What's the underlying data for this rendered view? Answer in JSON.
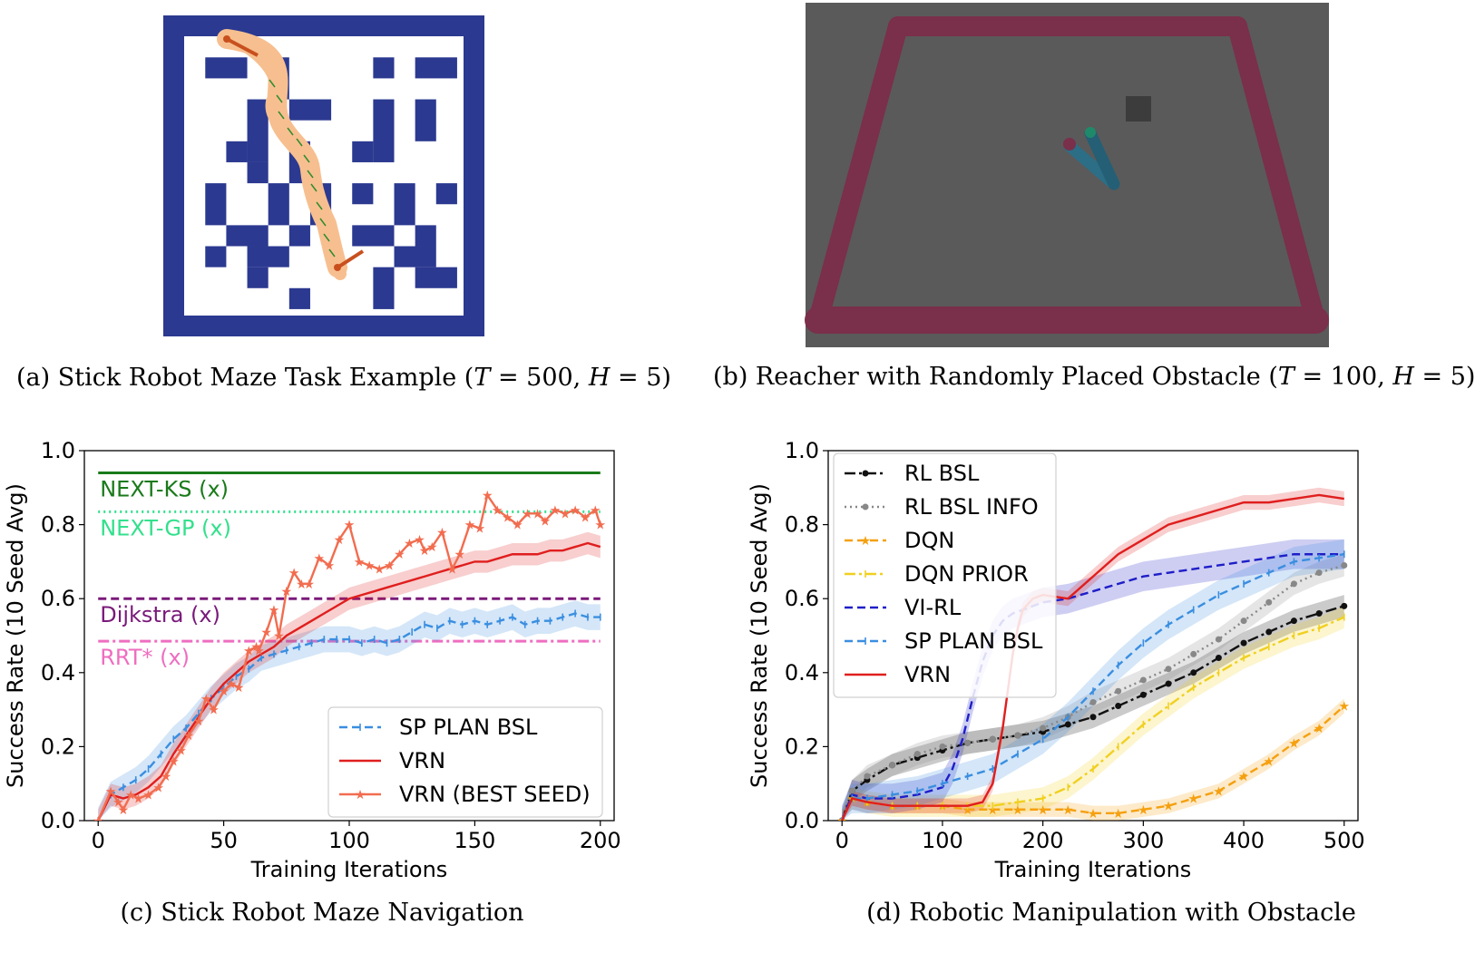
{
  "captions": {
    "a": {
      "prefix": "(a) Stick Robot Maze Task Example (",
      "T": "T",
      "T_val": " = 500, ",
      "H": "H",
      "H_val": " = 5)"
    },
    "b": {
      "prefix": "(b) Reacher with Randomly Placed Obstacle (",
      "T": "T",
      "T_val": " = 100, ",
      "H": "H",
      "H_val": " = 5)"
    },
    "c": "(c) Stick Robot Maze Navigation",
    "d": "(d) Robotic Manipulation with Obstacle"
  },
  "colors": {
    "maze_wall": "#2b3990",
    "maze_path": "#f7bf8f",
    "robot": "#c8501e",
    "floor": "#5a5a5a",
    "rail": "#7a2f4a",
    "green": "#1a7a1a",
    "springgreen": "#33e08c",
    "purple": "#7a1a7a",
    "pink": "#ee6ec0",
    "blue": "#3a8ee0",
    "red": "#e01e1e",
    "salmon": "#f26c4f",
    "black": "#111111",
    "gray": "#888888",
    "orange": "#f5a00f",
    "gold": "#f0d020",
    "navy": "#1e1ec8"
  },
  "chart_data": [
    {
      "id": "c",
      "type": "line",
      "xlabel": "Training Iterations",
      "ylabel": "Success Rate (10 Seed Avg)",
      "xlim": [
        0,
        200
      ],
      "ylim": [
        0,
        1.0
      ],
      "xticks": [
        "0",
        "50",
        "100",
        "150",
        "200"
      ],
      "yticks": [
        "0.0",
        "0.2",
        "0.4",
        "0.6",
        "0.8",
        "1.0"
      ],
      "baselines": [
        {
          "label": "NEXT-KS (x)",
          "y": 0.94,
          "style": "solid",
          "color": "#1a7a1a"
        },
        {
          "label": "NEXT-GP (x)",
          "y": 0.835,
          "style": "dotted",
          "color": "#33e08c"
        },
        {
          "label": "Dijkstra (x)",
          "y": 0.6,
          "style": "dashed",
          "color": "#7a1a7a"
        },
        {
          "label": "RRT* (x)",
          "y": 0.485,
          "style": "dashdot",
          "color": "#ee6ec0"
        }
      ],
      "legend_position": "lower-right",
      "series": [
        {
          "name": "SP PLAN BSL",
          "style": "dashed-tick",
          "color": "#3a8ee0",
          "x": [
            0,
            5,
            10,
            15,
            20,
            25,
            30,
            35,
            40,
            45,
            50,
            55,
            60,
            65,
            70,
            75,
            80,
            85,
            90,
            95,
            100,
            105,
            110,
            115,
            120,
            125,
            130,
            135,
            140,
            145,
            150,
            155,
            160,
            165,
            170,
            175,
            180,
            185,
            190,
            195,
            200
          ],
          "y": [
            0.0,
            0.07,
            0.09,
            0.11,
            0.14,
            0.18,
            0.22,
            0.25,
            0.29,
            0.33,
            0.36,
            0.39,
            0.41,
            0.44,
            0.45,
            0.46,
            0.47,
            0.48,
            0.49,
            0.49,
            0.49,
            0.48,
            0.49,
            0.48,
            0.49,
            0.51,
            0.53,
            0.52,
            0.54,
            0.53,
            0.54,
            0.53,
            0.54,
            0.55,
            0.53,
            0.54,
            0.54,
            0.55,
            0.56,
            0.55,
            0.55
          ],
          "band": 0.035
        },
        {
          "name": "VRN",
          "style": "solid",
          "color": "#e01e1e",
          "x": [
            0,
            5,
            10,
            15,
            20,
            25,
            30,
            35,
            40,
            45,
            50,
            55,
            60,
            65,
            70,
            75,
            80,
            85,
            90,
            95,
            100,
            105,
            110,
            115,
            120,
            125,
            130,
            135,
            140,
            145,
            150,
            155,
            160,
            165,
            170,
            175,
            180,
            185,
            190,
            195,
            200
          ],
          "y": [
            0.0,
            0.07,
            0.06,
            0.07,
            0.09,
            0.12,
            0.18,
            0.23,
            0.28,
            0.33,
            0.37,
            0.4,
            0.43,
            0.45,
            0.47,
            0.5,
            0.52,
            0.54,
            0.56,
            0.58,
            0.6,
            0.61,
            0.62,
            0.63,
            0.64,
            0.65,
            0.66,
            0.67,
            0.68,
            0.69,
            0.7,
            0.7,
            0.71,
            0.72,
            0.72,
            0.72,
            0.73,
            0.73,
            0.74,
            0.75,
            0.74
          ],
          "band": 0.03
        },
        {
          "name": "VRN (BEST SEED)",
          "style": "solid-star",
          "color": "#f26c4f",
          "x": [
            0,
            5,
            8,
            10,
            13,
            16,
            20,
            24,
            27,
            30,
            33,
            36,
            40,
            43,
            46,
            50,
            53,
            56,
            60,
            63,
            64,
            67,
            70,
            72,
            75,
            78,
            81,
            84,
            88,
            92,
            96,
            100,
            104,
            108,
            112,
            116,
            120,
            124,
            128,
            130,
            133,
            137,
            141,
            144,
            148,
            152,
            155,
            159,
            163,
            167,
            171,
            175,
            178,
            182,
            186,
            190,
            194,
            198,
            200
          ],
          "y": [
            0.0,
            0.08,
            0.05,
            0.03,
            0.07,
            0.06,
            0.07,
            0.09,
            0.12,
            0.16,
            0.19,
            0.23,
            0.27,
            0.33,
            0.3,
            0.35,
            0.37,
            0.36,
            0.46,
            0.47,
            0.46,
            0.51,
            0.57,
            0.5,
            0.62,
            0.67,
            0.64,
            0.64,
            0.71,
            0.69,
            0.76,
            0.8,
            0.7,
            0.69,
            0.68,
            0.69,
            0.72,
            0.75,
            0.76,
            0.73,
            0.74,
            0.78,
            0.68,
            0.72,
            0.8,
            0.79,
            0.88,
            0.84,
            0.82,
            0.8,
            0.83,
            0.83,
            0.81,
            0.84,
            0.83,
            0.84,
            0.82,
            0.84,
            0.8
          ]
        }
      ]
    },
    {
      "id": "d",
      "type": "line",
      "xlabel": "Training Iterations",
      "ylabel": "Success Rate (10 Seed Avg)",
      "xlim": [
        0,
        500
      ],
      "ylim": [
        0,
        1.0
      ],
      "xticks": [
        "0",
        "100",
        "200",
        "300",
        "400",
        "500"
      ],
      "yticks": [
        "0.0",
        "0.2",
        "0.4",
        "0.6",
        "0.8",
        "1.0"
      ],
      "legend_position": "upper-left",
      "series": [
        {
          "name": "RL BSL",
          "style": "dashdot",
          "color": "#111111",
          "x": [
            0,
            10,
            25,
            50,
            75,
            100,
            125,
            150,
            175,
            200,
            225,
            250,
            275,
            300,
            325,
            350,
            375,
            400,
            425,
            450,
            475,
            500
          ],
          "y": [
            0.0,
            0.08,
            0.11,
            0.15,
            0.17,
            0.19,
            0.21,
            0.22,
            0.23,
            0.24,
            0.26,
            0.28,
            0.31,
            0.34,
            0.37,
            0.4,
            0.44,
            0.48,
            0.51,
            0.54,
            0.56,
            0.58
          ],
          "band": 0.03
        },
        {
          "name": "RL BSL INFO",
          "style": "dotted-dot",
          "color": "#888888",
          "x": [
            0,
            10,
            25,
            50,
            75,
            100,
            125,
            150,
            175,
            200,
            225,
            250,
            275,
            300,
            325,
            350,
            375,
            400,
            425,
            450,
            475,
            500
          ],
          "y": [
            0.0,
            0.08,
            0.12,
            0.15,
            0.18,
            0.2,
            0.21,
            0.22,
            0.23,
            0.25,
            0.28,
            0.32,
            0.35,
            0.38,
            0.41,
            0.45,
            0.49,
            0.54,
            0.59,
            0.64,
            0.67,
            0.69
          ],
          "band": 0.03
        },
        {
          "name": "DQN",
          "style": "dashed-star",
          "color": "#f5a00f",
          "x": [
            0,
            10,
            25,
            50,
            75,
            100,
            125,
            150,
            175,
            200,
            225,
            250,
            275,
            300,
            325,
            350,
            375,
            400,
            425,
            450,
            475,
            500
          ],
          "y": [
            0.0,
            0.06,
            0.05,
            0.04,
            0.04,
            0.04,
            0.03,
            0.03,
            0.03,
            0.03,
            0.03,
            0.02,
            0.02,
            0.03,
            0.04,
            0.06,
            0.08,
            0.12,
            0.16,
            0.21,
            0.25,
            0.31
          ],
          "band": 0.02
        },
        {
          "name": "DQN PRIOR",
          "style": "dashdot-tick",
          "color": "#f0d020",
          "x": [
            0,
            10,
            25,
            50,
            75,
            100,
            125,
            150,
            175,
            200,
            225,
            250,
            275,
            300,
            325,
            350,
            375,
            400,
            425,
            450,
            475,
            500
          ],
          "y": [
            0.0,
            0.06,
            0.05,
            0.04,
            0.04,
            0.04,
            0.04,
            0.04,
            0.05,
            0.06,
            0.09,
            0.14,
            0.2,
            0.26,
            0.31,
            0.36,
            0.4,
            0.44,
            0.47,
            0.5,
            0.52,
            0.55
          ],
          "band": 0.03
        },
        {
          "name": "VI-RL",
          "style": "dashed",
          "color": "#1e1ec8",
          "x": [
            0,
            10,
            25,
            50,
            75,
            100,
            110,
            120,
            130,
            140,
            150,
            160,
            170,
            180,
            190,
            200,
            225,
            250,
            275,
            300,
            325,
            350,
            375,
            400,
            425,
            450,
            475,
            500
          ],
          "y": [
            0.0,
            0.07,
            0.06,
            0.06,
            0.07,
            0.09,
            0.14,
            0.22,
            0.33,
            0.43,
            0.5,
            0.54,
            0.56,
            0.57,
            0.58,
            0.59,
            0.6,
            0.62,
            0.64,
            0.66,
            0.67,
            0.68,
            0.69,
            0.7,
            0.71,
            0.72,
            0.72,
            0.72
          ],
          "band": 0.04
        },
        {
          "name": "SP PLAN BSL",
          "style": "dashed-tick",
          "color": "#3a8ee0",
          "x": [
            0,
            10,
            25,
            50,
            75,
            100,
            125,
            150,
            175,
            200,
            225,
            250,
            275,
            300,
            325,
            350,
            375,
            400,
            425,
            450,
            475,
            500
          ],
          "y": [
            0.0,
            0.06,
            0.06,
            0.07,
            0.08,
            0.1,
            0.12,
            0.14,
            0.18,
            0.22,
            0.28,
            0.35,
            0.42,
            0.48,
            0.53,
            0.57,
            0.61,
            0.64,
            0.67,
            0.7,
            0.71,
            0.72
          ],
          "band": 0.04
        },
        {
          "name": "VRN",
          "style": "solid",
          "color": "#e01e1e",
          "x": [
            0,
            10,
            25,
            50,
            75,
            100,
            125,
            140,
            150,
            160,
            170,
            175,
            180,
            190,
            200,
            225,
            250,
            275,
            300,
            325,
            350,
            375,
            400,
            425,
            450,
            475,
            500
          ],
          "y": [
            0.0,
            0.06,
            0.05,
            0.04,
            0.04,
            0.04,
            0.04,
            0.05,
            0.1,
            0.25,
            0.45,
            0.52,
            0.57,
            0.6,
            0.61,
            0.6,
            0.66,
            0.72,
            0.76,
            0.8,
            0.82,
            0.84,
            0.86,
            0.86,
            0.87,
            0.88,
            0.87
          ],
          "band": 0.02
        }
      ]
    }
  ]
}
